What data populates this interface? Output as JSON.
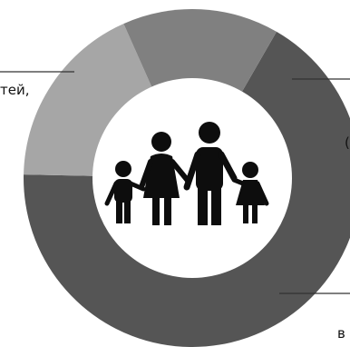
{
  "chart_data": {
    "type": "pie",
    "donut": true,
    "categories": [
      "…тей,",
      "(",
      "в"
    ],
    "values": [
      67,
      18,
      15
    ],
    "colors": [
      "#555555",
      "#a6a6a6",
      "#808080"
    ],
    "center_icon": "family-icon",
    "start_angle_deg": -60,
    "legend": "none",
    "title": "",
    "xlabel": "",
    "ylabel": ""
  },
  "labels": {
    "left": "тей,",
    "right_top": "(",
    "right_bottom": "в"
  }
}
